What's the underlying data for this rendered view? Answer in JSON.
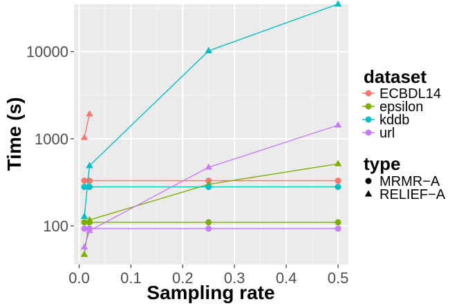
{
  "chart_data": {
    "type": "line",
    "xlabel": "Sampling rate",
    "ylabel": "Time (s)",
    "xlim": [
      -0.01,
      0.52
    ],
    "ylim": [
      36,
      35000
    ],
    "y_scale": "log",
    "x_ticks": [
      0.0,
      0.1,
      0.2,
      0.3,
      0.4,
      0.5
    ],
    "x_tick_labels": [
      "0.0",
      "0.1",
      "0.2",
      "0.3",
      "0.4",
      "0.5"
    ],
    "y_ticks": [
      100,
      1000,
      10000
    ],
    "y_tick_labels": [
      "100",
      "1000",
      "10000"
    ],
    "grid": true,
    "background": "#ebebeb",
    "legend": {
      "placement": "right",
      "color_title": "dataset",
      "shape_title": "type",
      "shape_entries": [
        {
          "label": "MRMR−A",
          "shape": "circle"
        },
        {
          "label": "RELIEF−A",
          "shape": "triangle"
        }
      ]
    },
    "datasets": [
      {
        "name": "ECBDL14",
        "color": "#f8766d"
      },
      {
        "name": "epsilon",
        "color": "#7cae00"
      },
      {
        "name": "kddb",
        "color": "#00bfc4"
      },
      {
        "name": "url",
        "color": "#c77cff"
      }
    ],
    "series": [
      {
        "dataset": "ECBDL14",
        "type": "MRMR−A",
        "x": [
          0.01,
          0.02,
          0.25,
          0.5
        ],
        "y": [
          330,
          330,
          330,
          330
        ]
      },
      {
        "dataset": "ECBDL14",
        "type": "RELIEF−A",
        "x": [
          0.01,
          0.02
        ],
        "y": [
          1030,
          1920
        ]
      },
      {
        "dataset": "epsilon",
        "type": "MRMR−A",
        "x": [
          0.01,
          0.02,
          0.25,
          0.5
        ],
        "y": [
          110,
          110,
          110,
          110
        ]
      },
      {
        "dataset": "epsilon",
        "type": "RELIEF−A",
        "x": [
          0.01,
          0.02,
          0.25,
          0.5
        ],
        "y": [
          47,
          117,
          300,
          515
        ]
      },
      {
        "dataset": "kddb",
        "type": "MRMR−A",
        "x": [
          0.01,
          0.02,
          0.25,
          0.5
        ],
        "y": [
          280,
          280,
          280,
          280
        ]
      },
      {
        "dataset": "kddb",
        "type": "RELIEF−A",
        "x": [
          0.01,
          0.02,
          0.25,
          0.5
        ],
        "y": [
          128,
          490,
          10200,
          35000
        ]
      },
      {
        "dataset": "url",
        "type": "MRMR−A",
        "x": [
          0.01,
          0.02,
          0.25,
          0.5
        ],
        "y": [
          93,
          93,
          93,
          93
        ]
      },
      {
        "dataset": "url",
        "type": "RELIEF−A",
        "x": [
          0.01,
          0.02,
          0.25,
          0.5
        ],
        "y": [
          57,
          88,
          470,
          1430
        ]
      }
    ]
  }
}
